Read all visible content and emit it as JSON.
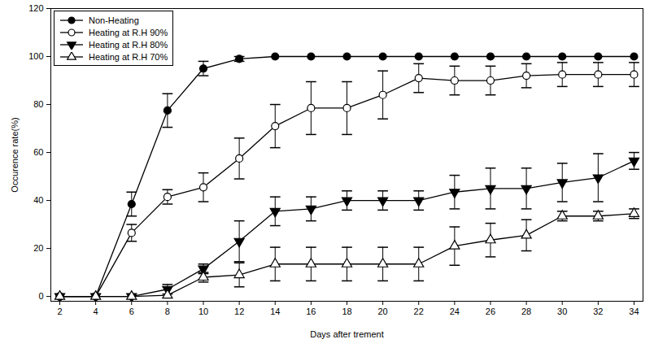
{
  "chart_data": {
    "type": "line",
    "x_label": "Days after trement",
    "y_label": "Occurence rate(%)",
    "x": [
      2,
      4,
      6,
      8,
      10,
      12,
      14,
      16,
      18,
      20,
      22,
      24,
      26,
      28,
      30,
      32,
      34
    ],
    "xlim": [
      1.5,
      34.5
    ],
    "xticks": [
      2,
      4,
      6,
      8,
      10,
      12,
      14,
      16,
      18,
      20,
      22,
      24,
      26,
      28,
      30,
      32,
      34
    ],
    "ylim": [
      -2,
      120
    ],
    "yticks": [
      0,
      20,
      40,
      60,
      80,
      100,
      120
    ],
    "grid": false,
    "legend": "top-left",
    "series": [
      {
        "name": "Non-Heating",
        "color": "#000000",
        "marker": "circle",
        "line_style": "solid",
        "values": [
          0,
          0,
          38.5,
          77.5,
          95,
          99,
          100,
          100,
          100,
          100,
          100,
          100,
          100,
          100,
          100,
          100,
          100
        ],
        "errors": [
          0,
          0,
          5,
          7,
          3,
          1,
          0,
          0,
          0,
          0,
          0,
          0,
          0,
          0,
          0,
          0,
          0
        ]
      },
      {
        "name": "Heating at R.H 90%",
        "color": "#000000",
        "marker": "open-circle",
        "line_style": "solid",
        "values": [
          0,
          0,
          26.5,
          41.5,
          45.5,
          57.5,
          71,
          78.5,
          78.5,
          84,
          91,
          90,
          90,
          92,
          92.5,
          92.5,
          92.5
        ],
        "errors": [
          0,
          0,
          3.5,
          3,
          6,
          8.5,
          9,
          11,
          11,
          10,
          6,
          6,
          6,
          5,
          5,
          5,
          5
        ]
      },
      {
        "name": "Heating at R.H 80%",
        "color": "#000000",
        "marker": "triangle-down",
        "line_style": "solid",
        "values": [
          0,
          0,
          0,
          3,
          11.5,
          23,
          35.5,
          36.5,
          40,
          40,
          40,
          43.5,
          45,
          45,
          47.5,
          49.5,
          56.5
        ],
        "errors": [
          0,
          0,
          0,
          2,
          2,
          8.5,
          6,
          5,
          4,
          4,
          4,
          7,
          8.5,
          8.5,
          8,
          10,
          3.5
        ]
      },
      {
        "name": "Heating at R.H 70%",
        "color": "#000000",
        "marker": "open-triangle",
        "line_style": "solid",
        "values": [
          0,
          0,
          0,
          0.5,
          8,
          9,
          13.5,
          13.5,
          13.5,
          13.5,
          13.5,
          21,
          23.5,
          25.5,
          33.5,
          33.5,
          34.5
        ],
        "errors": [
          0,
          0,
          0,
          0,
          2,
          5,
          7,
          7,
          7,
          7,
          7,
          8,
          7,
          6.5,
          2,
          2,
          2
        ]
      }
    ]
  }
}
